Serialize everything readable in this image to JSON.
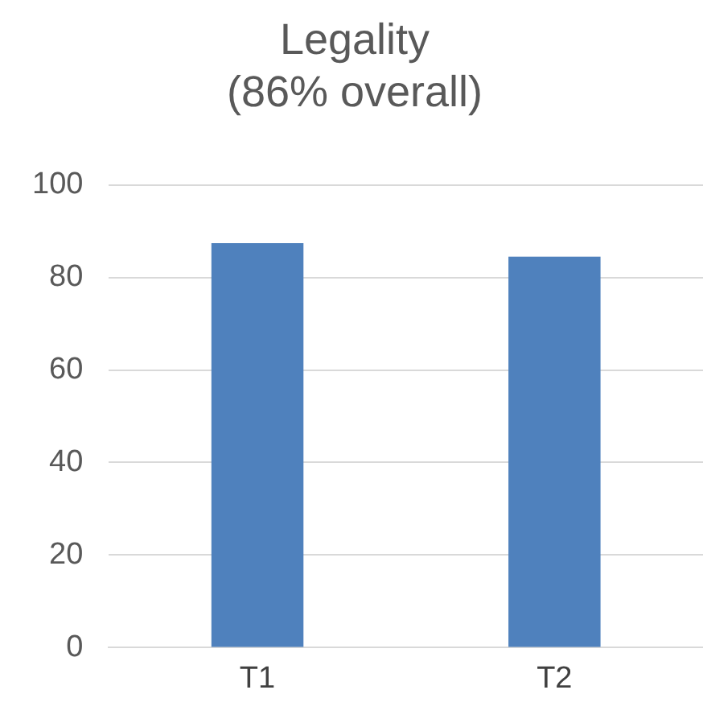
{
  "chart_data": {
    "type": "bar",
    "title": [
      "Legality",
      "(86% overall)"
    ],
    "categories": [
      "T1",
      "T2"
    ],
    "values": [
      87.4,
      84.5
    ],
    "color": "#4f81bd",
    "ylim": [
      0,
      100
    ],
    "yticks": [
      0,
      20,
      40,
      60,
      80,
      100
    ],
    "grid": "y"
  }
}
